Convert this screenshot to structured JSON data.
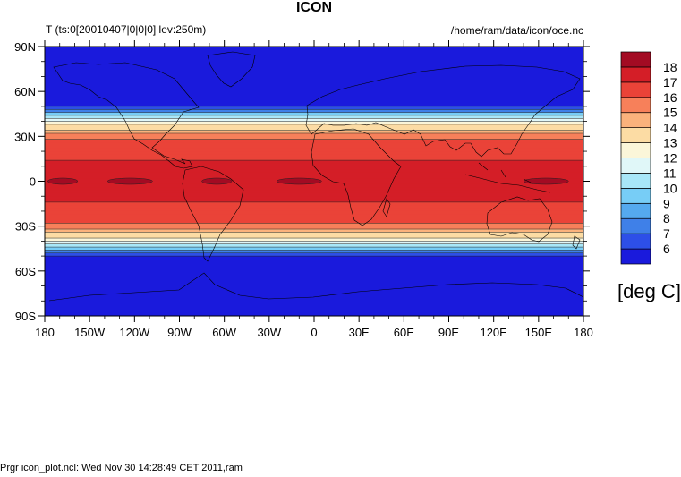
{
  "figure": {
    "title": "ICON",
    "left_string": "T (ts:0[20010407|0|0|0] lev:250m)",
    "right_string": "/home/ram/data/icon/oce.nc",
    "footer": "Prgr icon_plot.ncl: Wed Nov 30 14:28:49 CET 2011,ram",
    "units": "[deg C]"
  },
  "chart_data": {
    "type": "heatmap",
    "title": "ICON",
    "projection": "cylindrical-equidistant",
    "variable": "T",
    "x_ticks": [
      "180",
      "150W",
      "120W",
      "90W",
      "60W",
      "30W",
      "0",
      "30E",
      "60E",
      "90E",
      "120E",
      "150E",
      "180"
    ],
    "y_ticks": [
      "90N",
      "60N",
      "30N",
      "0",
      "30S",
      "60S",
      "90S"
    ],
    "xlim": [
      -180,
      180
    ],
    "ylim": [
      -90,
      90
    ],
    "colorbar": {
      "levels": [
        6,
        7,
        8,
        9,
        10,
        11,
        12,
        13,
        14,
        15,
        16,
        17,
        18
      ],
      "colors": [
        "#1a1adc",
        "#2d4fe8",
        "#3f80e8",
        "#55a9ee",
        "#77cdf6",
        "#a8e7f8",
        "#e0f7f8",
        "#fbf6d9",
        "#fcdca4",
        "#fbb27c",
        "#f7805a",
        "#ea4338",
        "#d41e27",
        "#a30b23"
      ]
    },
    "temperature_bands": [
      {
        "lat_range": [
          50,
          90
        ],
        "value_range": "< 6"
      },
      {
        "lat_range": [
          40,
          50
        ],
        "value_range": "6 - 12"
      },
      {
        "lat_range": [
          28,
          40
        ],
        "value_range": "12 - 16"
      },
      {
        "lat_range": [
          14,
          28
        ],
        "value_range": "16 - 17"
      },
      {
        "lat_range": [
          -14,
          14
        ],
        "value_range": "17 - 18"
      },
      {
        "lat_range": [
          -28,
          -14
        ],
        "value_range": "16 - 17"
      },
      {
        "lat_range": [
          -40,
          -28
        ],
        "value_range": "12 - 16"
      },
      {
        "lat_range": [
          -50,
          -40
        ],
        "value_range": "6 - 12"
      },
      {
        "lat_range": [
          -90,
          -50
        ],
        "value_range": "< 6"
      }
    ],
    "equatorial_maxima": [
      {
        "lon_range": [
          -178,
          -158
        ],
        "value_range": "> 18"
      },
      {
        "lon_range": [
          -138,
          -108
        ],
        "value_range": "> 18"
      },
      {
        "lon_range": [
          -75,
          -55
        ],
        "value_range": "> 18"
      },
      {
        "lon_range": [
          -25,
          5
        ],
        "value_range": "> 18"
      },
      {
        "lon_range": [
          140,
          170
        ],
        "value_range": "> 18"
      }
    ]
  }
}
